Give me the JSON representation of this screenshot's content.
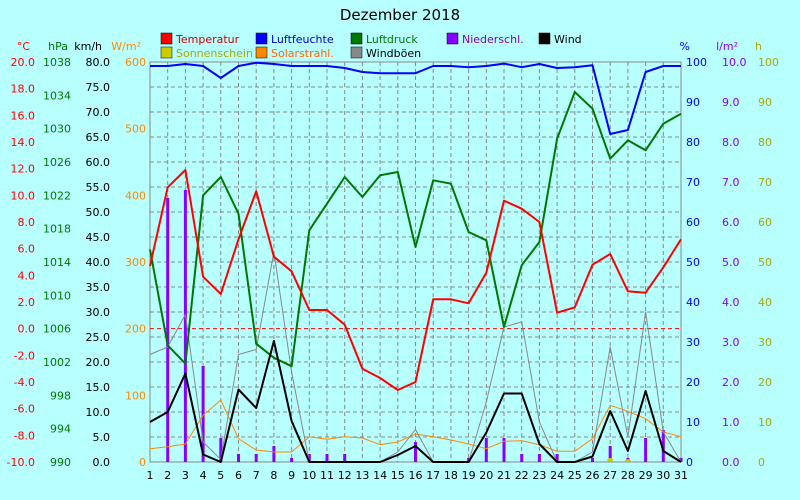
{
  "chart_data": {
    "type": "line",
    "title": "Dezember 2018",
    "x": [
      1,
      2,
      3,
      4,
      5,
      6,
      7,
      8,
      9,
      10,
      11,
      12,
      13,
      14,
      15,
      16,
      17,
      18,
      19,
      20,
      21,
      22,
      23,
      24,
      25,
      26,
      27,
      28,
      29,
      30,
      31
    ],
    "series": [
      {
        "name": "Temperatur",
        "color": "#ff0000",
        "axis": "temp",
        "values": [
          4.7,
          10.6,
          11.9,
          3.9,
          2.6,
          6.7,
          10.3,
          5.4,
          4.3,
          1.4,
          1.4,
          0.3,
          -3.0,
          -3.7,
          -4.6,
          -4.0,
          2.2,
          2.2,
          1.9,
          4.2,
          9.6,
          9.0,
          8.0,
          1.2,
          1.6,
          4.8,
          5.6,
          2.8,
          2.7,
          4.6,
          6.7
        ]
      },
      {
        "name": "Luftfeuchte",
        "color": "#0000ff",
        "axis": "pct",
        "values": [
          99,
          99,
          99.5,
          99,
          96,
          99,
          99.8,
          99.5,
          99,
          99,
          99,
          98.5,
          97.5,
          97.2,
          97.2,
          97.2,
          99,
          99,
          98.7,
          99,
          99.6,
          98.7,
          99.5,
          98.5,
          98.7,
          99.2,
          82,
          83,
          97.5,
          99,
          99
        ]
      },
      {
        "name": "Luftdruck",
        "color": "#007700",
        "axis": "hpa",
        "values": [
          1015.5,
          1004,
          1001.8,
          1022,
          1024.2,
          1019.8,
          1004.2,
          1002.5,
          1001.5,
          1017.8,
          1021,
          1024.2,
          1021.8,
          1024.4,
          1024.8,
          1015.8,
          1023.8,
          1023.4,
          1017.6,
          1016.6,
          1006.2,
          1013.6,
          1016.4,
          1028.8,
          1034.4,
          1032.4,
          1026.4,
          1028.6,
          1027.4,
          1030.6,
          1031.8
        ]
      },
      {
        "name": "Wind",
        "color": "#000000",
        "axis": "kmh",
        "values": [
          8,
          10,
          17.7,
          1.5,
          0,
          14.5,
          10.8,
          24.2,
          8.2,
          0,
          0,
          0,
          0,
          0,
          1.4,
          3.2,
          0,
          0,
          0,
          5.9,
          13.7,
          13.7,
          3.6,
          0,
          0,
          1.1,
          10.2,
          2.2,
          14.2,
          2.2,
          0
        ]
      },
      {
        "name": "Windböen",
        "color": "#888888",
        "axis": "kmh",
        "values": [
          21.5,
          23,
          29.5,
          4,
          0.5,
          21.5,
          22.5,
          42,
          18,
          0,
          0,
          0,
          0,
          0,
          2,
          6.5,
          0,
          0,
          0,
          12,
          27,
          28,
          8,
          0,
          0,
          2,
          23,
          5,
          30,
          6,
          0
        ]
      },
      {
        "name": "Solarstrahl.",
        "color": "#ff8800",
        "axis": "wm2",
        "values": [
          20,
          23,
          27,
          70,
          93,
          35,
          18,
          15,
          15,
          38,
          34,
          38,
          36,
          26,
          30,
          42,
          38,
          33,
          27,
          20,
          31,
          32,
          26,
          16,
          16,
          35,
          85,
          76,
          65,
          45,
          38
        ]
      }
    ],
    "bars": [
      {
        "name": "Niederschl.",
        "color": "#8800ff",
        "axis": "mm",
        "x": [
          2,
          3,
          4,
          5,
          6,
          7,
          8,
          9,
          10,
          11,
          12,
          16,
          19,
          20,
          21,
          22,
          23,
          24,
          26,
          27,
          28,
          29,
          30,
          31
        ],
        "values": [
          6.6,
          6.8,
          2.4,
          0.6,
          0.2,
          0.2,
          0.4,
          0.1,
          0.2,
          0.2,
          0.2,
          0.5,
          0.1,
          0.6,
          0.6,
          0.2,
          0.2,
          0.2,
          0.1,
          0.4,
          0.1,
          0.6,
          0.8,
          0.1
        ]
      },
      {
        "name": "Sonnenschein",
        "color": "#cccc00",
        "axis": "h",
        "x": [
          27,
          28
        ],
        "values": [
          1.0,
          0.7
        ]
      }
    ],
    "legend": [
      {
        "name": "Temperatur",
        "color": "#ff0000",
        "text_color": "#cc0000"
      },
      {
        "name": "Sonnenschein",
        "color": "#cccc00",
        "text_color": "#aaaa00"
      },
      {
        "name": "Luftfeuchte",
        "color": "#0000ff",
        "text_color": "#0000cc"
      },
      {
        "name": "Solarstrahl.",
        "color": "#ff8800",
        "text_color": "#ff6600"
      },
      {
        "name": "Luftdruck",
        "color": "#007700",
        "text_color": "#007700"
      },
      {
        "name": "Windböen",
        "color": "#888888",
        "text_color": "#000000"
      },
      {
        "name": "Niederschl.",
        "color": "#8800ff",
        "text_color": "#8800aa"
      },
      {
        "name": "Wind",
        "color": "#000000",
        "text_color": "#000000"
      }
    ],
    "axes": {
      "temp": {
        "unit": "°C",
        "min": -10,
        "max": 20,
        "step": 2,
        "decimals": 1,
        "color": "#ff0000"
      },
      "hpa": {
        "unit": "hPa",
        "min": 990,
        "max": 1038,
        "step": 4,
        "decimals": 0,
        "color": "#007700"
      },
      "kmh": {
        "unit": "km/h",
        "min": 0,
        "max": 80,
        "step": 5,
        "decimals": 1,
        "color": "#000000"
      },
      "wm2": {
        "unit": "W/m²",
        "min": 0,
        "max": 600,
        "step": 100,
        "decimals": 0,
        "color": "#ff8800"
      },
      "pct": {
        "unit": "%",
        "min": 0,
        "max": 100,
        "step": 10,
        "decimals": 0,
        "color": "#0000ff"
      },
      "mm": {
        "unit": "l/m²",
        "min": 0,
        "max": 10,
        "step": 1,
        "decimals": 1,
        "color": "#8800ff"
      },
      "h": {
        "unit": "h",
        "min": 0,
        "max": 100,
        "step": 10,
        "decimals": 0,
        "color": "#aaaa00"
      }
    },
    "x_ticks": [
      1,
      2,
      3,
      4,
      5,
      6,
      7,
      8,
      9,
      10,
      11,
      12,
      13,
      14,
      15,
      16,
      17,
      18,
      19,
      20,
      21,
      22,
      23,
      24,
      25,
      26,
      27,
      28,
      29,
      30,
      31
    ],
    "grid": true,
    "zero_line_color": "#ff0000"
  }
}
